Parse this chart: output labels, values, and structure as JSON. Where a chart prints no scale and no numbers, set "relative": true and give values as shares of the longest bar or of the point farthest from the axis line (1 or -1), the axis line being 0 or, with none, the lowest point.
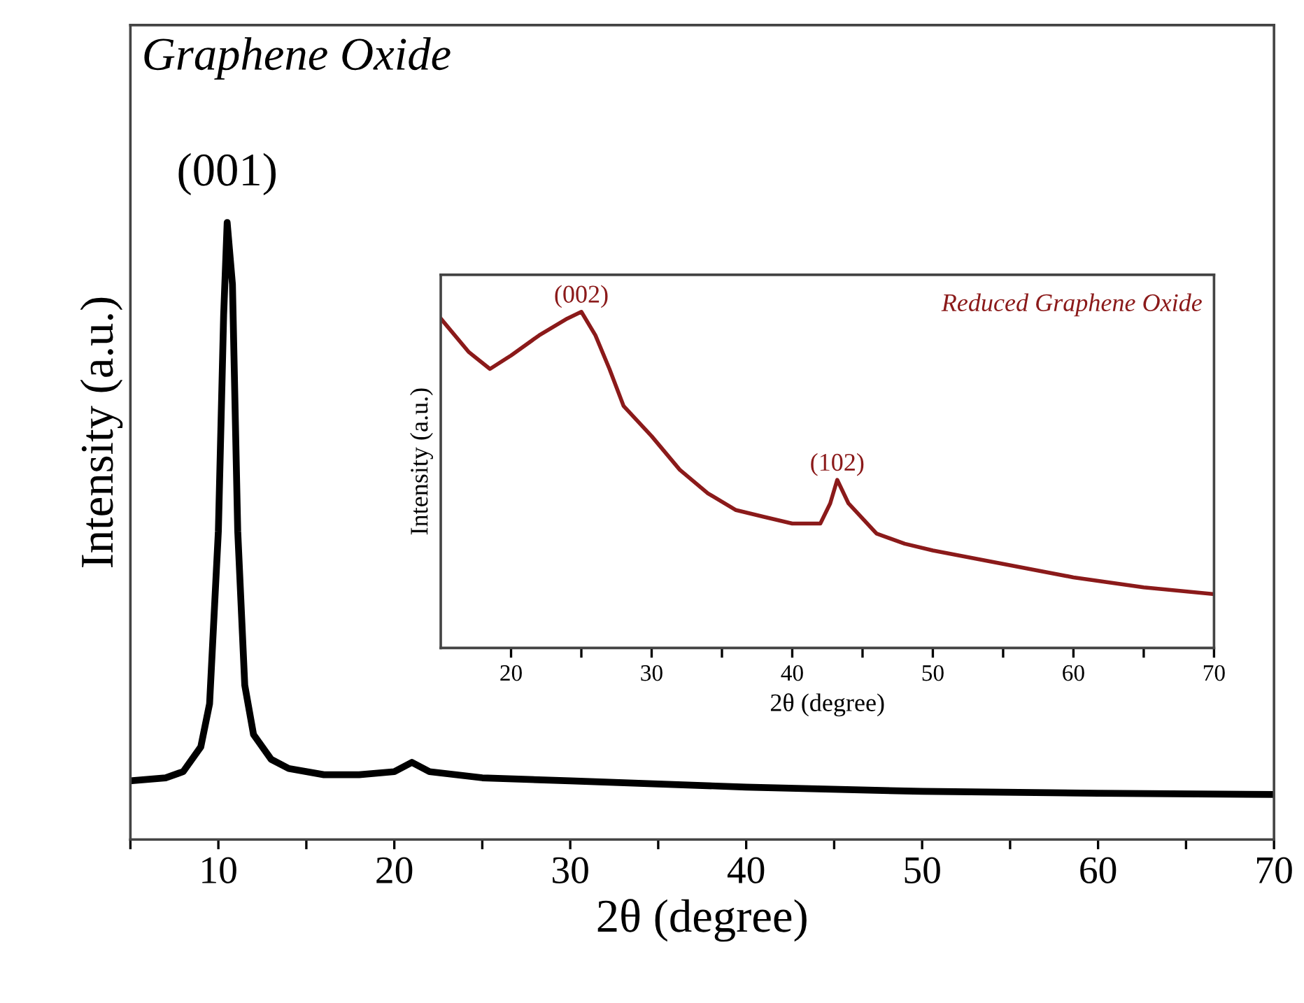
{
  "chart_data": [
    {
      "type": "line",
      "title": "Graphene Oxide",
      "xlabel": "2θ (degree)",
      "ylabel": "Intensity (a.u.)",
      "relative": true,
      "tick_labels": "x",
      "grid": false,
      "xlim": [
        5,
        70
      ],
      "xticks": [
        {
          "value": 5,
          "label": null
        },
        10,
        {
          "value": 15,
          "label": null
        },
        20,
        {
          "value": 25,
          "label": null
        },
        30,
        {
          "value": 35,
          "label": null
        },
        40,
        {
          "value": 45,
          "label": null
        },
        50,
        {
          "value": 55,
          "label": null
        },
        60,
        {
          "value": 65,
          "label": null
        },
        70
      ],
      "series": [
        {
          "color": "#000000",
          "x": [
            5,
            7,
            8,
            9,
            9.5,
            10,
            10.3,
            10.5,
            10.8,
            11.1,
            11.5,
            12,
            13,
            14,
            16,
            18,
            20,
            21,
            22,
            25,
            30,
            35,
            40,
            50,
            60,
            70
          ],
          "values": [
            0.095,
            0.1,
            0.11,
            0.15,
            0.22,
            0.5,
            0.85,
            1.0,
            0.9,
            0.5,
            0.25,
            0.17,
            0.13,
            0.115,
            0.105,
            0.105,
            0.11,
            0.125,
            0.11,
            0.1,
            0.095,
            0.09,
            0.085,
            0.078,
            0.075,
            0.073
          ]
        }
      ],
      "annotations": [
        {
          "text": "(001)",
          "x": 10.5,
          "y": 1.0
        }
      ]
    },
    {
      "type": "line",
      "title": "Reduced Graphene Oxide",
      "xlabel": "2θ (degree)",
      "ylabel": "Intensity (a.u.)",
      "relative": true,
      "tick_labels": "x",
      "grid": false,
      "xlim": [
        15,
        70
      ],
      "xticks": [
        20,
        {
          "value": 25,
          "label": null
        },
        30,
        {
          "value": 35,
          "label": null
        },
        40,
        {
          "value": 45,
          "label": null
        },
        50,
        {
          "value": 55,
          "label": null
        },
        60,
        {
          "value": 65,
          "label": null
        },
        70
      ],
      "series": [
        {
          "color": "#8b1a1a",
          "x": [
            15,
            17,
            18.5,
            20,
            22,
            24,
            25,
            26,
            27,
            28,
            30,
            32,
            34,
            36,
            38,
            40,
            42,
            42.7,
            43.2,
            44,
            46,
            48,
            50,
            55,
            60,
            65,
            70
          ],
          "values": [
            0.98,
            0.88,
            0.83,
            0.87,
            0.93,
            0.98,
            1.0,
            0.93,
            0.83,
            0.72,
            0.63,
            0.53,
            0.46,
            0.41,
            0.39,
            0.37,
            0.37,
            0.43,
            0.5,
            0.43,
            0.34,
            0.31,
            0.29,
            0.25,
            0.21,
            0.18,
            0.16
          ]
        }
      ],
      "annotations": [
        {
          "text": "(002)",
          "x": 25,
          "y": 1.0
        },
        {
          "text": "(102)",
          "x": 43.2,
          "y": 0.5
        }
      ]
    }
  ]
}
